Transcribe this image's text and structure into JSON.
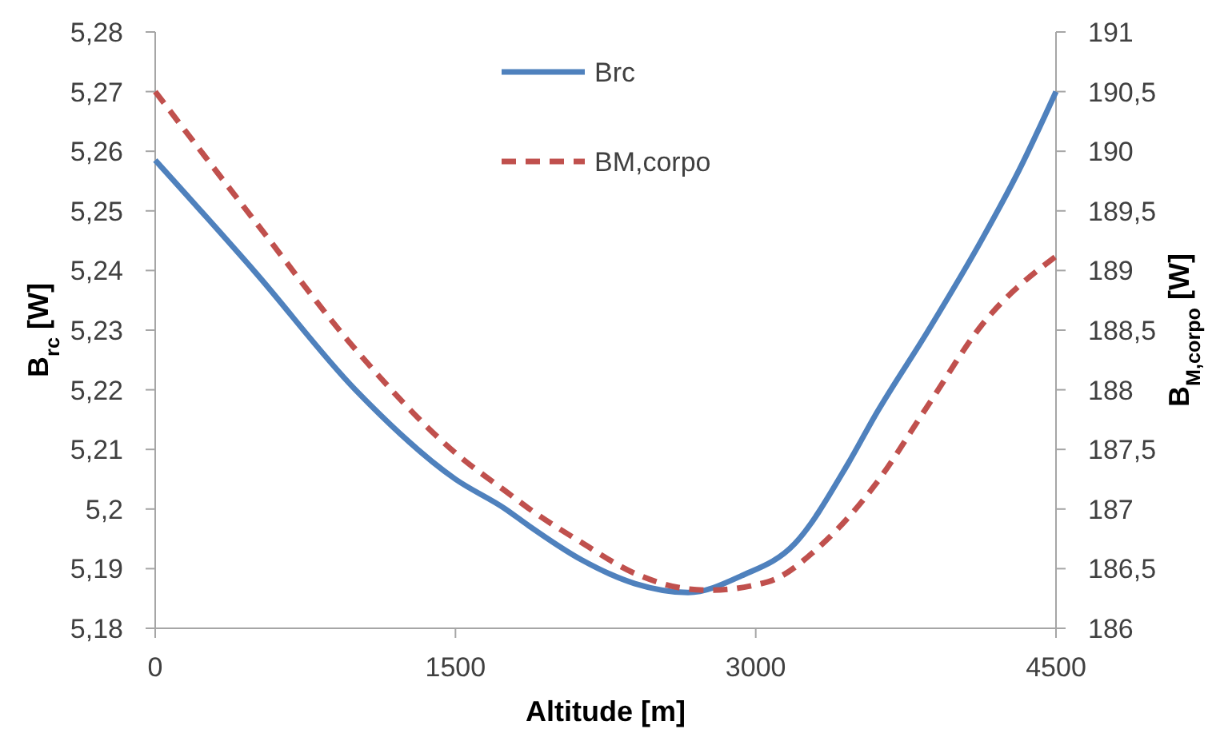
{
  "chart_data": {
    "type": "line",
    "xlabel": "Altitude [m]",
    "ylabel": "B$_{rc}$ [W]",
    "y2label": "B$_{M,corpo}$ [W]",
    "xlim": [
      0,
      4500
    ],
    "xticks": [
      0,
      1500,
      3000,
      4500
    ],
    "ylim": [
      5.18,
      5.28
    ],
    "yticks": [
      {
        "value": 5.18,
        "label": "5,18"
      },
      {
        "value": 5.19,
        "label": "5,19"
      },
      {
        "value": 5.2,
        "label": "5,2"
      },
      {
        "value": 5.21,
        "label": "5,21"
      },
      {
        "value": 5.22,
        "label": "5,22"
      },
      {
        "value": 5.23,
        "label": "5,23"
      },
      {
        "value": 5.24,
        "label": "5,24"
      },
      {
        "value": 5.25,
        "label": "5,25"
      },
      {
        "value": 5.26,
        "label": "5,26"
      },
      {
        "value": 5.27,
        "label": "5,27"
      },
      {
        "value": 5.28,
        "label": "5,28"
      }
    ],
    "y2lim": [
      186,
      191
    ],
    "y2ticks": [
      186,
      {
        "value": 186.5,
        "label": "186,5"
      },
      187,
      {
        "value": 187.5,
        "label": "187,5"
      },
      188,
      {
        "value": 188.5,
        "label": "188,5"
      },
      189,
      {
        "value": 189.5,
        "label": "189,5"
      },
      190,
      {
        "value": 190.5,
        "label": "190,5"
      },
      191
    ],
    "x": [
      0,
      500,
      1000,
      1500,
      1750,
      1862,
      2129,
      2396,
      2662,
      2928,
      3195,
      3461,
      3595,
      3861,
      4128,
      4315,
      4500
    ],
    "series": [
      {
        "name": "Brc",
        "color": "#4f81bd",
        "line_style": "solid",
        "values": [
          5.2585,
          5.2397,
          5.22,
          5.205,
          5.2,
          5.1973,
          5.1915,
          5.1875,
          5.186,
          5.1888,
          5.1942,
          5.2076,
          5.2156,
          5.2299,
          5.2451,
          5.2568,
          5.27
        ]
      },
      {
        "name": "BM,corpo",
        "color": "#c0504d",
        "line_style": "dashed",
        "axis": "y2",
        "x": [
          0,
          500,
          1000,
          1500,
          1750,
          1862,
          2129,
          2396,
          2662,
          2768,
          3061,
          3328,
          3595,
          3861,
          4128,
          4500
        ],
        "values": [
          190.5,
          189.41,
          188.34,
          187.47,
          187.15,
          187.01,
          186.72,
          186.46,
          186.33,
          186.32,
          186.39,
          186.7,
          187.2,
          187.87,
          188.54,
          189.12
        ]
      }
    ],
    "grid": false,
    "legend": "top",
    "marker": "none"
  }
}
